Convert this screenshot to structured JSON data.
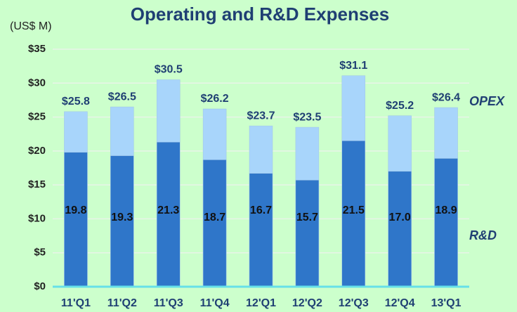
{
  "chart_data": {
    "type": "bar",
    "mode": "overlap",
    "title": "Operating and R&D Expenses",
    "y_label": "(US$ M)",
    "categories": [
      "11'Q1",
      "11'Q2",
      "11'Q3",
      "11'Q4",
      "12'Q1",
      "12'Q2",
      "12'Q3",
      "12'Q4",
      "13'Q1"
    ],
    "series": [
      {
        "name": "OPEX",
        "color": "#a8d5fb",
        "values": [
          25.8,
          26.5,
          30.5,
          26.2,
          23.7,
          23.5,
          31.1,
          25.2,
          26.4
        ],
        "value_labels": [
          "$25.8",
          "$26.5",
          "$30.5",
          "$26.2",
          "$23.7",
          "$23.5",
          "$31.1",
          "$25.2",
          "$26.4"
        ]
      },
      {
        "name": "R&D",
        "color": "#2f76c9",
        "values": [
          19.8,
          19.3,
          21.3,
          18.7,
          16.7,
          15.7,
          21.5,
          17,
          18.9
        ],
        "value_labels": [
          "19.8",
          "19.3",
          "21.3",
          "18.7",
          "16.7",
          "15.7",
          "21.5",
          "17.0",
          "18.9"
        ]
      }
    ],
    "ylim": [
      0,
      35
    ],
    "yticks": [
      {
        "value": 0,
        "label": "$0"
      },
      {
        "value": 5,
        "label": "$5"
      },
      {
        "value": 10,
        "label": "$10"
      },
      {
        "value": 15,
        "label": "$15"
      },
      {
        "value": 20,
        "label": "$20"
      },
      {
        "value": 25,
        "label": "$25"
      },
      {
        "value": 30,
        "label": "$30"
      },
      {
        "value": 35,
        "label": "$35"
      }
    ],
    "grid": true
  }
}
